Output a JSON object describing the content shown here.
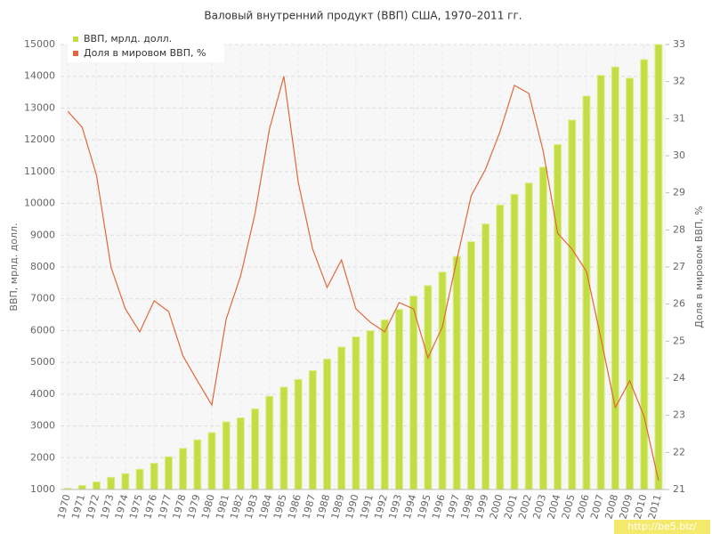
{
  "chart_data": {
    "type": "bar-line",
    "title": "Валовый внутренний продукт (ВВП) США, 1970–2011 гг.",
    "y_label": "ВВП, мрлд. долл.",
    "y2_label": "Доля в мировом ВВП, %",
    "watermark": "http://be5.biz/",
    "categories": [
      "1970",
      "1971",
      "1972",
      "1973",
      "1974",
      "1975",
      "1976",
      "1977",
      "1978",
      "1979",
      "1980",
      "1981",
      "1982",
      "1983",
      "1984",
      "1985",
      "1986",
      "1987",
      "1988",
      "1989",
      "1990",
      "1991",
      "1992",
      "1993",
      "1994",
      "1995",
      "1996",
      "1997",
      "1998",
      "1999",
      "2000",
      "2001",
      "2002",
      "2003",
      "2004",
      "2005",
      "2006",
      "2007",
      "2008",
      "2009",
      "2010",
      "2011"
    ],
    "series": [
      {
        "name": "ВВП, мрлд. долл.",
        "type": "bar",
        "color": "#c2de44",
        "values": [
          1038,
          1127,
          1238,
          1382,
          1500,
          1638,
          1825,
          2030,
          2294,
          2563,
          2789,
          3128,
          3255,
          3537,
          3933,
          4220,
          4463,
          4740,
          5104,
          5484,
          5803,
          5996,
          6338,
          6667,
          7085,
          7415,
          7839,
          8332,
          8794,
          9354,
          9952,
          10286,
          10642,
          11142,
          11853,
          12623,
          13377,
          14029,
          14292,
          13939,
          14526,
          15000
        ]
      },
      {
        "name": "Доля в мировом ВВП, %",
        "type": "line",
        "axis": "y2",
        "color": "#e0683a",
        "values": [
          31.2,
          30.77,
          29.47,
          27.0,
          25.87,
          25.25,
          26.09,
          25.8,
          24.6,
          23.93,
          23.28,
          25.6,
          26.76,
          28.44,
          30.72,
          32.14,
          29.28,
          27.48,
          26.45,
          27.19,
          25.87,
          25.51,
          25.25,
          26.04,
          25.87,
          24.55,
          25.39,
          27.19,
          28.92,
          29.64,
          30.65,
          31.9,
          31.68,
          30.12,
          27.91,
          27.48,
          26.88,
          25.08,
          23.21,
          23.93,
          22.97,
          21.24
        ]
      }
    ],
    "ylim": [
      1000,
      15000
    ],
    "yticks": [
      1000,
      2000,
      3000,
      4000,
      5000,
      6000,
      7000,
      8000,
      9000,
      10000,
      11000,
      12000,
      13000,
      14000,
      15000
    ],
    "y2lim": [
      21,
      33
    ],
    "y2ticks": [
      21,
      22,
      23,
      24,
      25,
      26,
      27,
      28,
      29,
      30,
      31,
      32,
      33
    ],
    "grid": true,
    "legend": "top-left"
  }
}
